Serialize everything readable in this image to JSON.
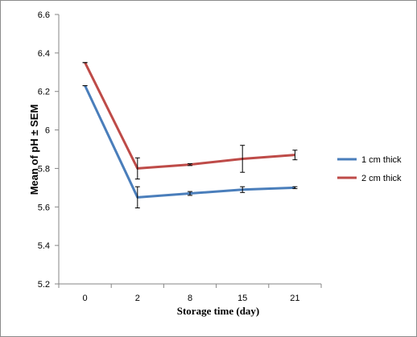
{
  "chart_data": {
    "type": "line",
    "xlabel": "Storage time  (day)",
    "ylabel": "Mean of pH ± SEM",
    "categories": [
      "0",
      "2",
      "8",
      "15",
      "21"
    ],
    "yticks": [
      "5.2",
      "5.4",
      "5.6",
      "5.8",
      "6",
      "6.2",
      "6.4",
      "6.6"
    ],
    "ylim": [
      5.2,
      6.6
    ],
    "grid": false,
    "legend_position": "right",
    "series": [
      {
        "name": "1 cm thick",
        "color": "#4a7ebb",
        "values": [
          6.23,
          5.65,
          5.67,
          5.69,
          5.7
        ],
        "errors": [
          0.0,
          0.055,
          0.01,
          0.015,
          0.005
        ]
      },
      {
        "name": "2 cm thick",
        "color": "#be4b48",
        "values": [
          6.35,
          5.8,
          5.82,
          5.85,
          5.87
        ],
        "errors": [
          0.0,
          0.055,
          0.005,
          0.07,
          0.025
        ]
      }
    ]
  }
}
